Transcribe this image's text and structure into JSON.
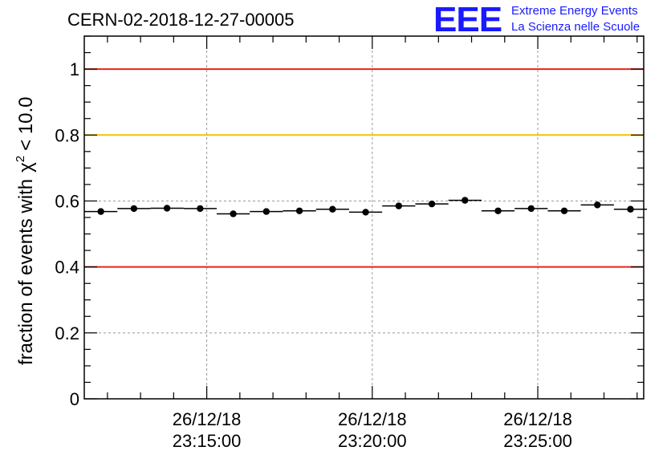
{
  "chart_data": {
    "type": "scatter",
    "title": "CERN-02-2018-12-27-00005",
    "ylabel": "fraction of events with χ² < 10.0",
    "ylabel_main": "fraction of events with",
    "ylabel_chi": "χ",
    "ylabel_exp": "2",
    "ylabel_tail": "< 10.0",
    "xlabel": "",
    "ylim": [
      0,
      1.1
    ],
    "xlim_min": [
      11.3,
      28.2
    ],
    "y_ticks": [
      {
        "value": 0,
        "label": "0"
      },
      {
        "value": 0.2,
        "label": "0.2"
      },
      {
        "value": 0.4,
        "label": "0.4"
      },
      {
        "value": 0.6,
        "label": "0.6"
      },
      {
        "value": 0.8,
        "label": "0.8"
      },
      {
        "value": 1.0,
        "label": "1"
      }
    ],
    "x_ticks": [
      {
        "value": 15,
        "date": "26/12/18",
        "time": "23:15:00"
      },
      {
        "value": 20,
        "date": "26/12/18",
        "time": "23:20:00"
      },
      {
        "value": 25,
        "date": "26/12/18",
        "time": "23:25:00"
      }
    ],
    "reference_lines": [
      {
        "y": 1.0,
        "color": "#e8231c"
      },
      {
        "y": 0.8,
        "color": "#f5c400"
      },
      {
        "y": 0.4,
        "color": "#e8231c"
      }
    ],
    "bin_width_min": 1.0,
    "x": [
      11.8,
      12.8,
      13.8,
      14.8,
      15.8,
      16.8,
      17.8,
      18.8,
      19.8,
      20.8,
      21.8,
      22.8,
      23.8,
      24.8,
      25.8,
      26.8,
      27.8
    ],
    "values": [
      0.568,
      0.577,
      0.578,
      0.577,
      0.561,
      0.568,
      0.57,
      0.575,
      0.566,
      0.585,
      0.591,
      0.602,
      0.57,
      0.577,
      0.57,
      0.588,
      0.575
    ],
    "grid": true
  },
  "logo": {
    "letters": "EEE",
    "line1": "Extreme Energy Events",
    "line2": "La Scienza nelle Scuole"
  },
  "colors": {
    "marker": "#000000",
    "logo": "#1a1aff",
    "grid": "#999999"
  }
}
